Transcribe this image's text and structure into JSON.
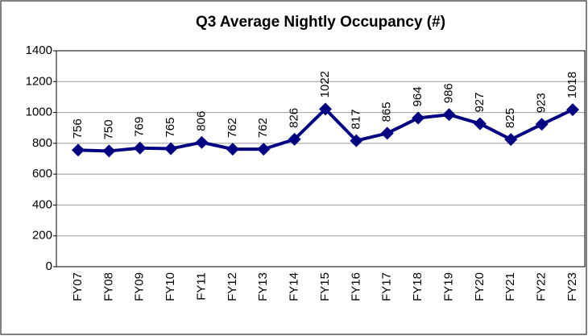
{
  "chart_data": {
    "type": "line",
    "title": "Q3 Average Nightly Occupancy (#)",
    "categories": [
      "FY07",
      "FY08",
      "FY09",
      "FY10",
      "FY11",
      "FY12",
      "FY13",
      "FY14",
      "FY15",
      "FY16",
      "FY17",
      "FY18",
      "FY19",
      "FY20",
      "FY21",
      "FY22",
      "FY23"
    ],
    "values": [
      756,
      750,
      769,
      765,
      806,
      762,
      762,
      826,
      1022,
      817,
      865,
      964,
      986,
      927,
      825,
      923,
      1018
    ],
    "color": "#000080",
    "ylim": [
      0,
      1400
    ],
    "yticks": [
      0,
      200,
      400,
      600,
      800,
      1000,
      1200,
      1400
    ],
    "grid": true
  }
}
